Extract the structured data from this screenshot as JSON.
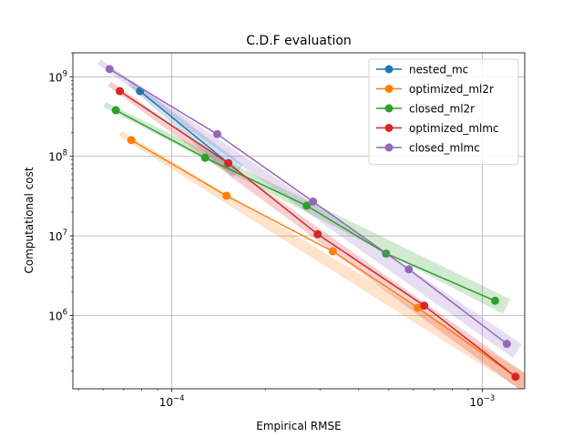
{
  "chart_data": {
    "type": "line",
    "title": "C.D.F evaluation",
    "xlabel": "Empirical RMSE",
    "ylabel": "Computational cost",
    "xscale": "log",
    "yscale": "log",
    "xlim": [
      4.8e-05,
      0.00137
    ],
    "ylim": [
      120000,
      2000000000
    ],
    "grid": true,
    "legend_position": "top-right",
    "x_ticks": [
      {
        "value": 0.0001,
        "base": "10",
        "exp": "−4"
      },
      {
        "value": 0.001,
        "base": "10",
        "exp": "−3"
      }
    ],
    "y_ticks": [
      {
        "value": 1000000,
        "base": "10",
        "exp": "6"
      },
      {
        "value": 10000000,
        "base": "10",
        "exp": "7"
      },
      {
        "value": 100000000,
        "base": "10",
        "exp": "8"
      },
      {
        "value": 1000000000,
        "base": "10",
        "exp": "9"
      }
    ],
    "series": [
      {
        "name": "nested_mc",
        "color": "#1f77b4",
        "x": [
          7.9e-05,
          0.000152
        ],
        "y": [
          660000000,
          82000000
        ]
      },
      {
        "name": "optimized_ml2r",
        "color": "#ff7f0e",
        "x": [
          7.4e-05,
          0.00015,
          0.00033,
          0.00062,
          0.00128
        ],
        "y": [
          160000000,
          32000000,
          6400000,
          1250000,
          170000
        ]
      },
      {
        "name": "closed_ml2r",
        "color": "#2ca02c",
        "x": [
          6.6e-05,
          0.000128,
          0.000272,
          0.00049,
          0.0011
        ],
        "y": [
          380000000,
          96000000,
          24000000,
          6000000,
          1530000
        ]
      },
      {
        "name": "optimized_mlmc",
        "color": "#d62728",
        "x": [
          6.8e-05,
          0.000152,
          0.000295,
          0.00065,
          0.00128
        ],
        "y": [
          660000000,
          82000000,
          10500000,
          1330000,
          170000
        ]
      },
      {
        "name": "closed_mlmc",
        "color": "#9467bd",
        "x": [
          6.3e-05,
          0.00014,
          0.000285,
          0.00058,
          0.0012
        ],
        "y": [
          1250000000,
          190000000,
          27000000,
          3800000,
          440000
        ]
      }
    ]
  }
}
